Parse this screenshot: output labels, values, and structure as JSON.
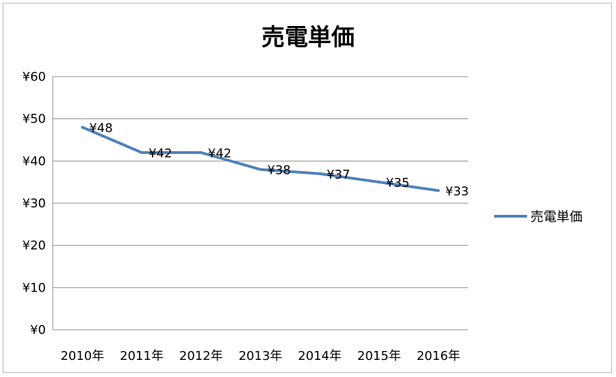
{
  "chart_data": {
    "type": "line",
    "title": "売電単価",
    "categories": [
      "2010年",
      "2011年",
      "2012年",
      "2013年",
      "2014年",
      "2015年",
      "2016年"
    ],
    "series": [
      {
        "name": "売電単価",
        "values": [
          48,
          42,
          42,
          38,
          37,
          35,
          33
        ],
        "color": "#4f81bd"
      }
    ],
    "data_labels": [
      "¥48",
      "¥42",
      "¥42",
      "¥38",
      "¥37",
      "¥35",
      "¥33"
    ],
    "yticks": [
      "¥0",
      "¥10",
      "¥20",
      "¥30",
      "¥40",
      "¥50",
      "¥60"
    ],
    "ylim": [
      0,
      60
    ],
    "xlabel": "",
    "ylabel": "",
    "grid": true,
    "legend": "right"
  }
}
